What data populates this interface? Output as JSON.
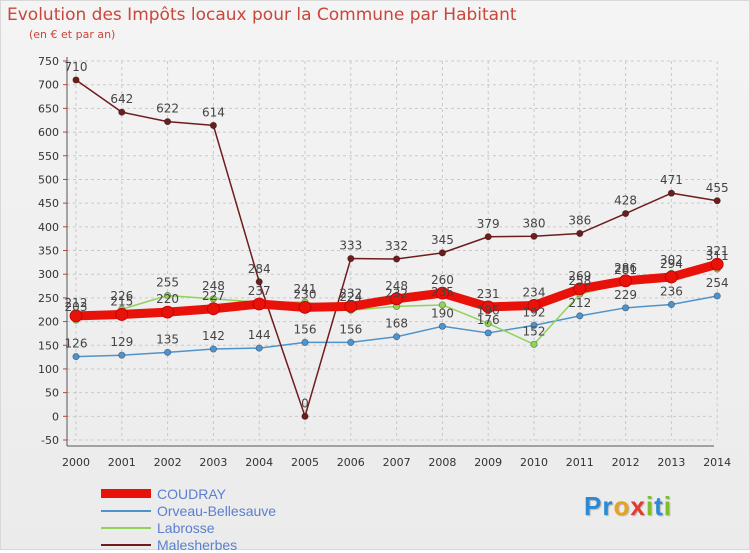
{
  "header": {
    "title": "Evolution des Impôts locaux pour la Commune par Habitant",
    "subtitle": "(en € et par an)"
  },
  "logo": {
    "parts": [
      "P",
      "r",
      "o",
      "x",
      "i",
      "t",
      "i"
    ]
  },
  "colors": {
    "title": "#c9463a",
    "legend_text": "#5b7fcf",
    "grid": "#c9c9c9",
    "axis_text": "#333333",
    "label_text": "#444444",
    "logo": [
      "#2a8ad4",
      "#2a8ad4",
      "#e8a21c",
      "#e23a2e",
      "#7cbf2a",
      "#2a8ad4",
      "#7cbf2a"
    ]
  },
  "chart_data": {
    "type": "line",
    "title": "Evolution des Impôts locaux pour la Commune par Habitant",
    "subtitle": "(en € et par an)",
    "xlabel": "",
    "ylabel": "",
    "x": [
      "2000",
      "2001",
      "2002",
      "2003",
      "2004",
      "2005",
      "2006",
      "2007",
      "2008",
      "2009",
      "2010",
      "2011",
      "2012",
      "2013",
      "2014"
    ],
    "ylim": [
      -50,
      750
    ],
    "yticks": [
      "-50",
      "0",
      "50",
      "100",
      "150",
      "200",
      "250",
      "300",
      "350",
      "400",
      "450",
      "500",
      "550",
      "600",
      "650",
      "700",
      "750"
    ],
    "grid": true,
    "legend_position": "bottom-left",
    "series": [
      {
        "name": "COUDRAY",
        "color": "#e8120b",
        "emphasis": "thick",
        "values": [
          212,
          215,
          220,
          227,
          237,
          230,
          232,
          248,
          260,
          231,
          234,
          269,
          286,
          294,
          321
        ],
        "labels": [
          "212",
          "215",
          "220",
          "227",
          "237",
          "230",
          "232",
          "248",
          "260",
          "231",
          "234",
          "269",
          "286",
          "294",
          "321"
        ]
      },
      {
        "name": "Orveau-Bellesauve",
        "color": "#4f93cc",
        "emphasis": "normal",
        "values": [
          126,
          129,
          135,
          142,
          144,
          156,
          156,
          168,
          190,
          176,
          192,
          212,
          229,
          236,
          254
        ],
        "labels": [
          "126",
          "129",
          "135",
          "142",
          "144",
          "156",
          "156",
          "168",
          "190",
          "176",
          "192",
          "212",
          "229",
          "236",
          "254"
        ]
      },
      {
        "name": "Labrosse",
        "color": "#8fd35a",
        "emphasis": "normal",
        "values": [
          203,
          226,
          255,
          248,
          241,
          241,
          224,
          232,
          235,
          196,
          152,
          258,
          281,
          302,
          311
        ],
        "labels": [
          "203",
          "226",
          "255",
          "248",
          "",
          "241",
          "224",
          "232",
          "235",
          "196",
          "152",
          "258",
          "281",
          "302",
          "311"
        ]
      },
      {
        "name": "Malesherbes",
        "color": "#6e1d1d",
        "emphasis": "normal",
        "values": [
          710,
          642,
          622,
          614,
          284,
          0,
          333,
          332,
          345,
          379,
          380,
          386,
          428,
          471,
          455
        ],
        "labels": [
          "710",
          "642",
          "622",
          "614",
          "284",
          "0",
          "333",
          "332",
          "345",
          "379",
          "380",
          "386",
          "428",
          "471",
          "455"
        ]
      }
    ]
  }
}
